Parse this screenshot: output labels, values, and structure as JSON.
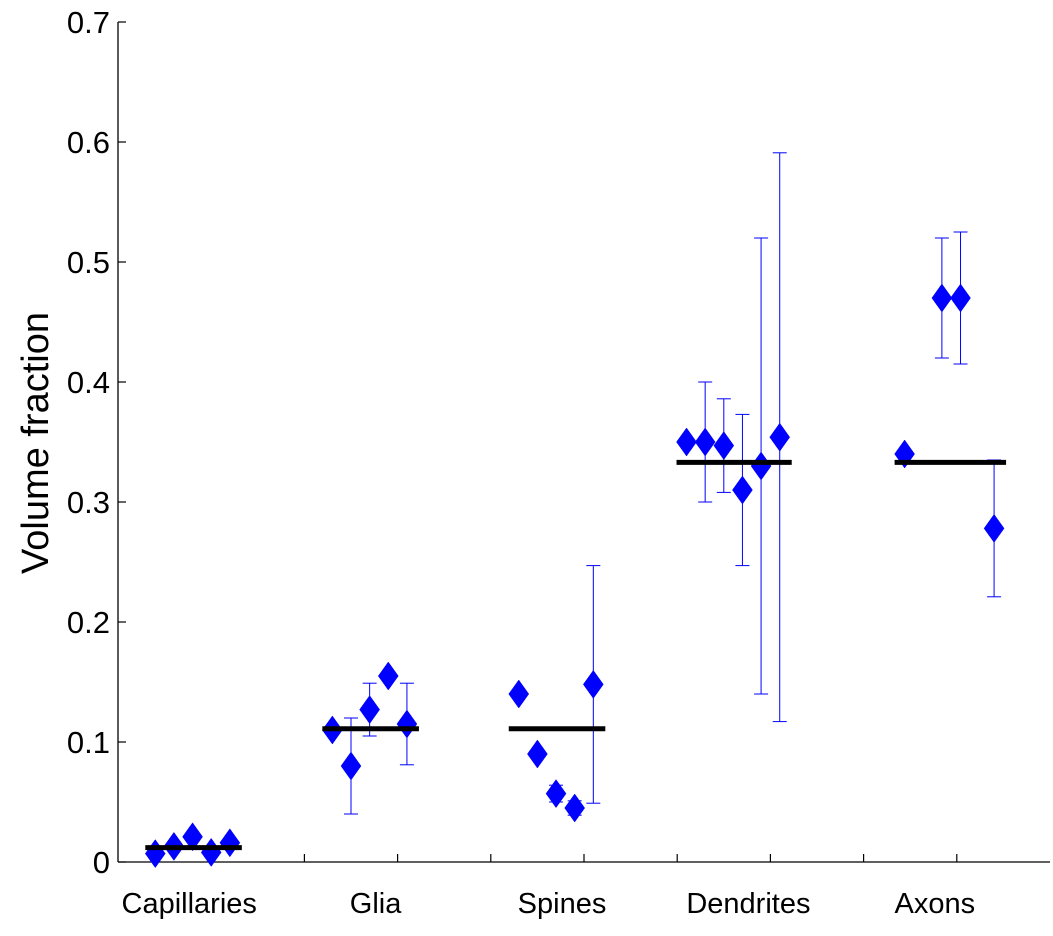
{
  "chart_data": {
    "type": "scatter",
    "title": "",
    "xlabel": "",
    "ylabel": "Volume  fraction",
    "ylim": [
      0,
      0.7
    ],
    "yticks": [
      "0",
      "0.1",
      "0.2",
      "0.3",
      "0.4",
      "0.5",
      "0.6",
      "0.7"
    ],
    "categories": [
      "Capillaries",
      "Glia",
      "Spines",
      "Dendrites",
      "Axons"
    ],
    "grid": false,
    "legend": "none",
    "colors": {
      "points": "#0000ff",
      "errorbars": "#0000ff",
      "mean": "#000000",
      "axes": "#000000"
    },
    "groups": [
      {
        "category": "Capillaries",
        "mean": 0.012,
        "points": [
          {
            "x": 0.7,
            "y": 0.007
          },
          {
            "x": 0.8,
            "y": 0.013
          },
          {
            "x": 0.9,
            "y": 0.021
          },
          {
            "x": 1.0,
            "y": 0.008
          },
          {
            "x": 1.1,
            "y": 0.016
          }
        ]
      },
      {
        "category": "Glia",
        "mean": 0.111,
        "points": [
          {
            "x": 1.65,
            "y": 0.11
          },
          {
            "x": 1.75,
            "y": 0.08,
            "err_low": 0.04,
            "err_high": 0.12
          },
          {
            "x": 1.85,
            "y": 0.127,
            "err_low": 0.105,
            "err_high": 0.149
          },
          {
            "x": 1.95,
            "y": 0.155
          },
          {
            "x": 2.05,
            "y": 0.115,
            "err_low": 0.081,
            "err_high": 0.149
          }
        ]
      },
      {
        "category": "Spines",
        "mean": 0.111,
        "points": [
          {
            "x": 2.65,
            "y": 0.14
          },
          {
            "x": 2.75,
            "y": 0.09
          },
          {
            "x": 2.85,
            "y": 0.057,
            "err_low": 0.05,
            "err_high": 0.064
          },
          {
            "x": 2.95,
            "y": 0.045,
            "err_low": 0.039,
            "err_high": 0.051
          },
          {
            "x": 3.05,
            "y": 0.148,
            "err_low": 0.049,
            "err_high": 0.247
          }
        ]
      },
      {
        "category": "Dendrites",
        "mean": 0.333,
        "points": [
          {
            "x": 3.55,
            "y": 0.35
          },
          {
            "x": 3.65,
            "y": 0.35,
            "err_low": 0.3,
            "err_high": 0.4
          },
          {
            "x": 3.75,
            "y": 0.347,
            "err_low": 0.308,
            "err_high": 0.386
          },
          {
            "x": 3.85,
            "y": 0.31,
            "err_low": 0.247,
            "err_high": 0.373
          },
          {
            "x": 3.95,
            "y": 0.33,
            "err_low": 0.14,
            "err_high": 0.52
          },
          {
            "x": 4.05,
            "y": 0.354,
            "err_low": 0.117,
            "err_high": 0.591
          }
        ]
      },
      {
        "category": "Axons",
        "mean": 0.333,
        "points": [
          {
            "x": 4.72,
            "y": 0.34
          },
          {
            "x": 4.92,
            "y": 0.47,
            "err_low": 0.42,
            "err_high": 0.52
          },
          {
            "x": 5.02,
            "y": 0.47,
            "err_low": 0.415,
            "err_high": 0.525
          },
          {
            "x": 5.2,
            "y": 0.278,
            "err_low": 0.221,
            "err_high": 0.335
          }
        ]
      }
    ]
  }
}
